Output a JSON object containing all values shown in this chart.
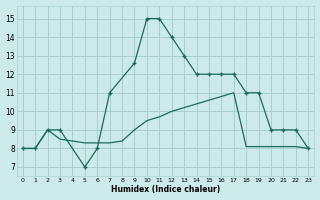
{
  "line1_x": [
    0,
    1,
    2,
    3,
    5,
    6,
    7,
    9,
    10,
    11,
    12,
    13,
    14,
    15,
    16,
    17,
    18,
    19,
    20,
    21,
    22,
    23
  ],
  "line1_y": [
    8,
    8,
    9,
    9,
    7,
    8,
    11,
    12.6,
    15,
    15,
    14,
    13,
    12,
    12,
    12,
    12,
    11,
    11,
    9,
    9,
    9,
    8
  ],
  "line2_x": [
    0,
    1,
    2,
    3,
    4,
    5,
    6,
    7,
    8,
    9,
    10,
    11,
    12,
    13,
    14,
    15,
    16,
    17,
    18,
    19,
    20,
    21,
    22,
    23
  ],
  "line2_y": [
    8,
    8,
    9,
    8.5,
    8.4,
    8.3,
    8.3,
    8.3,
    8.4,
    9.0,
    9.5,
    9.7,
    10.0,
    10.2,
    10.4,
    10.6,
    10.8,
    11.0,
    8.1,
    8.1,
    8.1,
    8.1,
    8.1,
    8.0
  ],
  "line_color": "#1a6b5a",
  "bg_color": "#cdeaea",
  "grid_color": "#aacfcf",
  "xlabel": "Humidex (Indice chaleur)",
  "yticks": [
    7,
    8,
    9,
    10,
    11,
    12,
    13,
    14,
    15
  ],
  "xlim": [
    -0.5,
    23.5
  ],
  "ylim": [
    6.5,
    15.7
  ]
}
